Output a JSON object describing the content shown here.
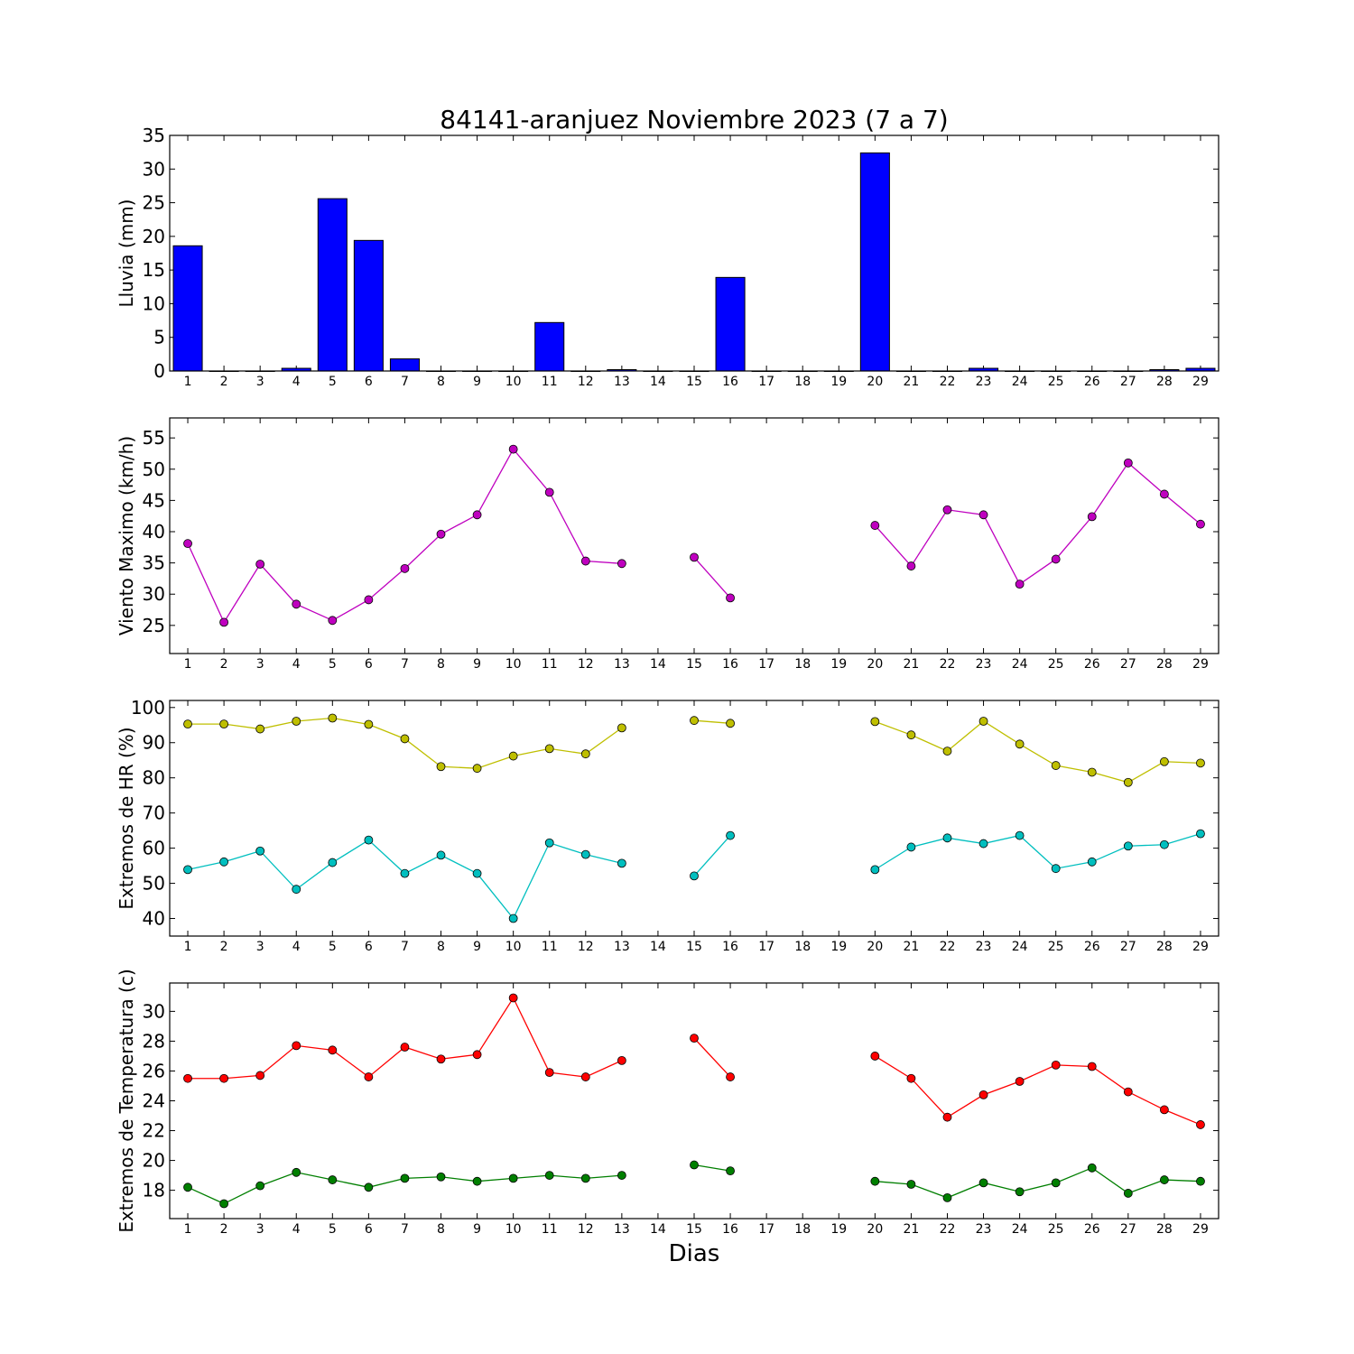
{
  "chart_data": [
    {
      "type": "bar",
      "title": "84141-aranjuez Noviembre 2023  (7 a 7)",
      "ylabel": "Lluvia (mm)",
      "xlabel": "",
      "ylim": [
        0,
        35
      ],
      "yticks": [
        0,
        5,
        10,
        15,
        20,
        25,
        30,
        35
      ],
      "categories": [
        "1",
        "2",
        "3",
        "4",
        "5",
        "6",
        "7",
        "8",
        "9",
        "10",
        "11",
        "12",
        "13",
        "14",
        "15",
        "16",
        "17",
        "18",
        "19",
        "20",
        "21",
        "22",
        "23",
        "24",
        "25",
        "26",
        "27",
        "28",
        "29"
      ],
      "values": [
        18.6,
        0,
        0,
        0.4,
        25.6,
        19.4,
        1.8,
        0,
        0,
        0,
        7.2,
        0,
        0.2,
        0,
        0,
        13.9,
        0,
        0,
        0,
        32.4,
        0,
        0,
        0.4,
        0,
        0,
        0,
        0,
        0.2,
        0.4
      ],
      "color": "#0000ff"
    },
    {
      "type": "line",
      "ylabel": "Viento Maximo (km/h)",
      "ylim": [
        20.5,
        58.2
      ],
      "yticks": [
        25,
        30,
        35,
        40,
        45,
        50,
        55
      ],
      "categories": [
        "1",
        "2",
        "3",
        "4",
        "5",
        "6",
        "7",
        "8",
        "9",
        "10",
        "11",
        "12",
        "13",
        "14",
        "15",
        "16",
        "17",
        "18",
        "19",
        "20",
        "21",
        "22",
        "23",
        "24",
        "25",
        "26",
        "27",
        "28",
        "29"
      ],
      "series": [
        {
          "color": "#bf00bf",
          "values": [
            38.1,
            25.5,
            34.8,
            28.4,
            25.8,
            29.1,
            34.1,
            39.6,
            42.7,
            53.2,
            46.3,
            35.3,
            34.9,
            null,
            35.9,
            29.4,
            null,
            null,
            null,
            41.0,
            34.5,
            43.5,
            42.7,
            31.6,
            35.6,
            42.4,
            51.0,
            46.0,
            41.2
          ]
        }
      ]
    },
    {
      "type": "line",
      "ylabel": "Extremos de HR (%)",
      "ylim": [
        35,
        102
      ],
      "yticks": [
        40,
        50,
        60,
        70,
        80,
        90,
        100
      ],
      "categories": [
        "1",
        "2",
        "3",
        "4",
        "5",
        "6",
        "7",
        "8",
        "9",
        "10",
        "11",
        "12",
        "13",
        "14",
        "15",
        "16",
        "17",
        "18",
        "19",
        "20",
        "21",
        "22",
        "23",
        "24",
        "25",
        "26",
        "27",
        "28",
        "29"
      ],
      "series": [
        {
          "color": "#bfbf00",
          "values": [
            95.3,
            95.3,
            93.9,
            96.1,
            97.0,
            95.2,
            91.1,
            83.2,
            82.7,
            86.2,
            88.3,
            86.8,
            94.2,
            null,
            96.3,
            95.5,
            null,
            null,
            null,
            96.0,
            92.2,
            87.6,
            96.1,
            89.6,
            83.5,
            81.6,
            78.7,
            84.6,
            84.2
          ]
        },
        {
          "color": "#00bfbf",
          "values": [
            53.9,
            56.1,
            59.2,
            48.3,
            55.9,
            62.3,
            52.8,
            58.0,
            52.8,
            40.0,
            61.5,
            58.2,
            55.7,
            null,
            52.1,
            63.6,
            null,
            null,
            null,
            53.9,
            60.3,
            62.9,
            61.3,
            63.6,
            54.2,
            56.1,
            60.6,
            61.0,
            64.1
          ]
        }
      ]
    },
    {
      "type": "line",
      "ylabel": "Extremos de Temperatura (c)",
      "xlabel": "Dias",
      "ylim": [
        16.1,
        31.9
      ],
      "yticks": [
        18,
        20,
        22,
        24,
        26,
        28,
        30
      ],
      "categories": [
        "1",
        "2",
        "3",
        "4",
        "5",
        "6",
        "7",
        "8",
        "9",
        "10",
        "11",
        "12",
        "13",
        "14",
        "15",
        "16",
        "17",
        "18",
        "19",
        "20",
        "21",
        "22",
        "23",
        "24",
        "25",
        "26",
        "27",
        "28",
        "29"
      ],
      "series": [
        {
          "color": "#ff0000",
          "values": [
            25.5,
            25.5,
            25.7,
            27.7,
            27.4,
            25.6,
            27.6,
            26.8,
            27.1,
            30.9,
            25.9,
            25.6,
            26.7,
            null,
            28.2,
            25.6,
            null,
            null,
            null,
            27.0,
            25.5,
            22.9,
            24.4,
            25.3,
            26.4,
            26.3,
            24.6,
            23.4,
            22.4
          ]
        },
        {
          "color": "#007f00",
          "values": [
            18.2,
            17.1,
            18.3,
            19.2,
            18.7,
            18.2,
            18.8,
            18.9,
            18.6,
            18.8,
            19.0,
            18.8,
            19.0,
            null,
            19.7,
            19.3,
            null,
            null,
            null,
            18.6,
            18.4,
            17.5,
            18.5,
            17.9,
            18.5,
            19.5,
            17.8,
            18.7,
            18.6
          ]
        }
      ]
    }
  ]
}
